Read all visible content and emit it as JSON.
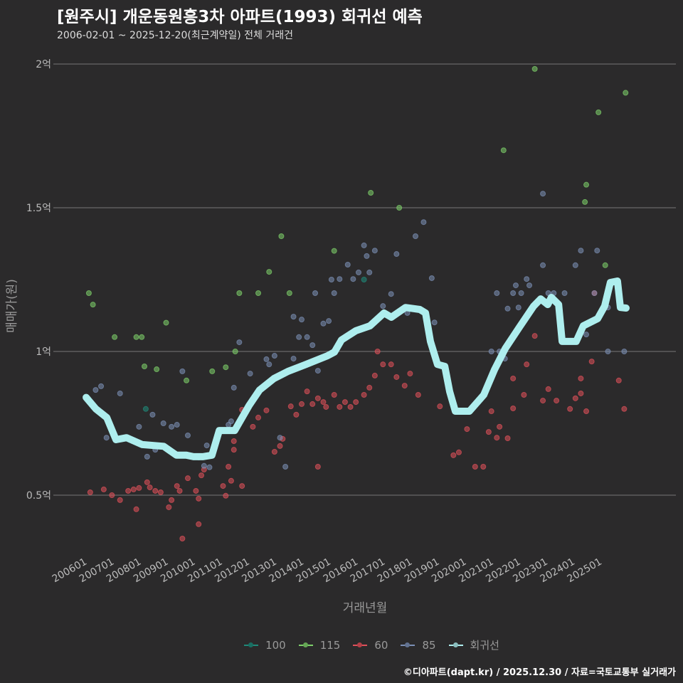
{
  "header": {
    "title": "[원주시] 개운동원흥3차 아파트(1993) 회귀선 예측",
    "subtitle": "2006-02-01 ~ 2025-12-20(최근계약일) 전체 거래건"
  },
  "footer": "©디아파트(dapt.kr) / 2025.12.30 / 자료=국토교통부 실거래가",
  "chart_data": {
    "type": "scatter",
    "title": "[원주시] 개운동원흥3차 아파트(1993) 회귀선 예측",
    "xlabel": "거래년월",
    "ylabel": "매매가(원)",
    "ylim": [
      2500,
      21000
    ],
    "xlim": [
      2005.1,
      2026.3
    ],
    "yticks": [
      {
        "v": 5000,
        "label": "0.5억"
      },
      {
        "v": 10000,
        "label": "1억"
      },
      {
        "v": 15000,
        "label": "1.5억"
      },
      {
        "v": 20000,
        "label": "2억"
      }
    ],
    "xticks": [
      "200601",
      "200701",
      "200801",
      "200901",
      "201001",
      "201101",
      "201201",
      "201301",
      "201401",
      "201501",
      "201601",
      "201701",
      "201801",
      "201901",
      "202001",
      "202101",
      "202201",
      "202301",
      "202401",
      "202501"
    ],
    "legend": [
      {
        "name": "100",
        "color": "#1f8a7a"
      },
      {
        "name": "115",
        "color": "#7ed06a"
      },
      {
        "name": "60",
        "color": "#e0505a"
      },
      {
        "name": "85",
        "color": "#7b8fb5"
      },
      {
        "name": "회귀선",
        "color": "#aeeeee"
      }
    ],
    "series": [
      {
        "name": "100",
        "points": [
          [
            2008.15,
            8000
          ],
          [
            2016.2,
            12500
          ]
        ]
      },
      {
        "name": "115",
        "points": [
          [
            2006.05,
            12030
          ],
          [
            2006.2,
            11630
          ],
          [
            2007.0,
            10500
          ],
          [
            2007.8,
            10500
          ],
          [
            2008.0,
            10500
          ],
          [
            2008.1,
            9480
          ],
          [
            2008.55,
            9380
          ],
          [
            2008.9,
            11000
          ],
          [
            2009.65,
            8990
          ],
          [
            2010.6,
            9310
          ],
          [
            2011.1,
            9450
          ],
          [
            2011.45,
            10000
          ],
          [
            2011.6,
            12030
          ],
          [
            2012.3,
            12030
          ],
          [
            2012.7,
            12770
          ],
          [
            2013.15,
            14010
          ],
          [
            2013.45,
            12030
          ],
          [
            2015.1,
            13500
          ],
          [
            2016.45,
            15520
          ],
          [
            2017.5,
            15000
          ],
          [
            2021.35,
            17000
          ],
          [
            2022.5,
            19830
          ],
          [
            2024.35,
            15200
          ],
          [
            2024.4,
            15800
          ],
          [
            2024.85,
            18320
          ],
          [
            2025.1,
            13000
          ],
          [
            2025.85,
            19000
          ]
        ]
      },
      {
        "name": "60",
        "points": [
          [
            2006.1,
            5100
          ],
          [
            2006.6,
            5200
          ],
          [
            2006.9,
            5000
          ],
          [
            2007.2,
            4830
          ],
          [
            2007.5,
            5150
          ],
          [
            2007.7,
            5200
          ],
          [
            2007.8,
            4510
          ],
          [
            2007.9,
            5250
          ],
          [
            2008.2,
            5450
          ],
          [
            2008.3,
            5270
          ],
          [
            2008.5,
            5150
          ],
          [
            2008.7,
            5100
          ],
          [
            2009.0,
            4580
          ],
          [
            2009.1,
            4830
          ],
          [
            2009.3,
            5320
          ],
          [
            2009.4,
            5150
          ],
          [
            2009.5,
            3490
          ],
          [
            2009.7,
            5590
          ],
          [
            2010.0,
            5150
          ],
          [
            2010.1,
            4880
          ],
          [
            2010.1,
            3990
          ],
          [
            2010.2,
            5690
          ],
          [
            2010.3,
            5890
          ],
          [
            2011.0,
            5320
          ],
          [
            2011.1,
            4980
          ],
          [
            2011.2,
            5990
          ],
          [
            2011.3,
            5500
          ],
          [
            2011.4,
            6580
          ],
          [
            2011.4,
            6880
          ],
          [
            2011.7,
            7970
          ],
          [
            2011.7,
            5320
          ],
          [
            2012.1,
            7380
          ],
          [
            2012.3,
            7700
          ],
          [
            2012.6,
            7950
          ],
          [
            2012.9,
            6510
          ],
          [
            2013.1,
            6710
          ],
          [
            2013.2,
            6960
          ],
          [
            2013.5,
            8090
          ],
          [
            2013.7,
            7800
          ],
          [
            2013.9,
            8170
          ],
          [
            2014.1,
            8610
          ],
          [
            2014.3,
            8170
          ],
          [
            2014.5,
            8370
          ],
          [
            2014.5,
            5990
          ],
          [
            2014.7,
            8240
          ],
          [
            2014.8,
            8070
          ],
          [
            2015.1,
            8490
          ],
          [
            2015.3,
            8070
          ],
          [
            2015.5,
            8240
          ],
          [
            2015.7,
            8070
          ],
          [
            2015.9,
            8240
          ],
          [
            2016.2,
            8490
          ],
          [
            2016.4,
            8740
          ],
          [
            2016.6,
            9160
          ],
          [
            2016.7,
            10000
          ],
          [
            2016.9,
            9550
          ],
          [
            2017.2,
            9550
          ],
          [
            2017.4,
            9110
          ],
          [
            2017.7,
            8810
          ],
          [
            2017.9,
            9230
          ],
          [
            2018.2,
            8490
          ],
          [
            2019.0,
            8090
          ],
          [
            2019.5,
            6390
          ],
          [
            2019.7,
            6490
          ],
          [
            2020.0,
            7300
          ],
          [
            2020.3,
            5990
          ],
          [
            2020.6,
            5990
          ],
          [
            2020.8,
            7200
          ],
          [
            2020.9,
            7920
          ],
          [
            2021.1,
            7000
          ],
          [
            2021.2,
            7380
          ],
          [
            2021.5,
            6980
          ],
          [
            2021.7,
            9060
          ],
          [
            2021.7,
            8020
          ],
          [
            2022.1,
            8490
          ],
          [
            2022.2,
            9550
          ],
          [
            2022.5,
            10540
          ],
          [
            2022.8,
            8290
          ],
          [
            2023.0,
            8690
          ],
          [
            2023.3,
            8290
          ],
          [
            2023.8,
            8000
          ],
          [
            2024.0,
            8370
          ],
          [
            2024.2,
            9060
          ],
          [
            2024.2,
            8540
          ],
          [
            2024.4,
            7920
          ],
          [
            2024.6,
            9650
          ],
          [
            2024.7,
            12030
          ],
          [
            2025.6,
            8990
          ],
          [
            2025.8,
            8000
          ]
        ]
      },
      {
        "name": "85",
        "points": [
          [
            2006.3,
            8660
          ],
          [
            2006.5,
            8790
          ],
          [
            2006.7,
            7000
          ],
          [
            2007.2,
            8540
          ],
          [
            2007.9,
            7380
          ],
          [
            2008.2,
            6340
          ],
          [
            2008.4,
            7800
          ],
          [
            2008.5,
            6580
          ],
          [
            2008.8,
            7500
          ],
          [
            2009.1,
            7380
          ],
          [
            2009.3,
            7450
          ],
          [
            2009.5,
            9310
          ],
          [
            2009.7,
            7080
          ],
          [
            2010.1,
            6310
          ],
          [
            2010.3,
            6020
          ],
          [
            2010.4,
            6730
          ],
          [
            2010.5,
            5970
          ],
          [
            2011.2,
            7450
          ],
          [
            2011.3,
            7570
          ],
          [
            2011.4,
            8740
          ],
          [
            2011.6,
            10320
          ],
          [
            2012.0,
            9230
          ],
          [
            2012.6,
            9730
          ],
          [
            2012.7,
            9550
          ],
          [
            2012.9,
            9850
          ],
          [
            2013.1,
            7000
          ],
          [
            2013.3,
            5990
          ],
          [
            2013.6,
            9750
          ],
          [
            2013.6,
            11210
          ],
          [
            2013.8,
            10500
          ],
          [
            2013.9,
            11110
          ],
          [
            2014.1,
            10500
          ],
          [
            2014.3,
            10220
          ],
          [
            2014.4,
            12030
          ],
          [
            2014.5,
            9330
          ],
          [
            2014.7,
            10970
          ],
          [
            2014.9,
            11060
          ],
          [
            2015.0,
            12500
          ],
          [
            2015.1,
            12030
          ],
          [
            2015.3,
            12520
          ],
          [
            2015.6,
            13020
          ],
          [
            2015.8,
            12520
          ],
          [
            2016.0,
            12750
          ],
          [
            2016.2,
            13690
          ],
          [
            2016.3,
            13320
          ],
          [
            2016.4,
            12750
          ],
          [
            2016.6,
            13510
          ],
          [
            2016.9,
            11580
          ],
          [
            2017.2,
            12000
          ],
          [
            2017.4,
            13390
          ],
          [
            2017.8,
            11340
          ],
          [
            2018.1,
            14010
          ],
          [
            2018.4,
            14500
          ],
          [
            2018.7,
            12550
          ],
          [
            2018.8,
            11010
          ],
          [
            2020.9,
            10000
          ],
          [
            2021.1,
            12030
          ],
          [
            2021.2,
            10000
          ],
          [
            2021.4,
            9750
          ],
          [
            2021.5,
            11490
          ],
          [
            2021.7,
            12030
          ],
          [
            2021.8,
            12300
          ],
          [
            2021.9,
            11530
          ],
          [
            2022.0,
            12030
          ],
          [
            2022.2,
            12520
          ],
          [
            2022.3,
            12300
          ],
          [
            2022.8,
            15490
          ],
          [
            2022.8,
            13000
          ],
          [
            2023.0,
            12030
          ],
          [
            2023.2,
            12030
          ],
          [
            2023.6,
            12030
          ],
          [
            2024.0,
            13000
          ],
          [
            2024.2,
            13510
          ],
          [
            2024.4,
            10590
          ],
          [
            2024.7,
            12030
          ],
          [
            2024.8,
            13510
          ],
          [
            2025.2,
            11530
          ],
          [
            2025.2,
            10000
          ],
          [
            2025.8,
            10000
          ]
        ]
      }
    ],
    "regression": {
      "name": "회귀선",
      "points": [
        [
          2005.95,
          8400
        ],
        [
          2006.31,
          8000
        ],
        [
          2006.71,
          7700
        ],
        [
          2007.05,
          6930
        ],
        [
          2007.44,
          7000
        ],
        [
          2008.02,
          6760
        ],
        [
          2008.81,
          6700
        ],
        [
          2009.28,
          6390
        ],
        [
          2009.65,
          6390
        ],
        [
          2009.91,
          6340
        ],
        [
          2010.25,
          6340
        ],
        [
          2010.59,
          6390
        ],
        [
          2010.86,
          7250
        ],
        [
          2011.43,
          7250
        ],
        [
          2011.96,
          8120
        ],
        [
          2012.35,
          8660
        ],
        [
          2012.88,
          9060
        ],
        [
          2013.4,
          9310
        ],
        [
          2014.06,
          9550
        ],
        [
          2014.85,
          9850
        ],
        [
          2015.11,
          9980
        ],
        [
          2015.37,
          10400
        ],
        [
          2015.9,
          10720
        ],
        [
          2016.42,
          10890
        ],
        [
          2016.94,
          11340
        ],
        [
          2017.21,
          11190
        ],
        [
          2017.73,
          11530
        ],
        [
          2018.26,
          11460
        ],
        [
          2018.47,
          11340
        ],
        [
          2018.65,
          10350
        ],
        [
          2018.91,
          9550
        ],
        [
          2019.18,
          9480
        ],
        [
          2019.36,
          8610
        ],
        [
          2019.57,
          7920
        ],
        [
          2020.09,
          7920
        ],
        [
          2020.62,
          8490
        ],
        [
          2021.01,
          9360
        ],
        [
          2021.41,
          10100
        ],
        [
          2021.93,
          10840
        ],
        [
          2022.46,
          11580
        ],
        [
          2022.72,
          11830
        ],
        [
          2022.98,
          11630
        ],
        [
          2023.11,
          11880
        ],
        [
          2023.38,
          11630
        ],
        [
          2023.51,
          10350
        ],
        [
          2024.03,
          10350
        ],
        [
          2024.29,
          10890
        ],
        [
          2024.82,
          11140
        ],
        [
          2025.08,
          11580
        ],
        [
          2025.29,
          12400
        ],
        [
          2025.55,
          12450
        ],
        [
          2025.66,
          11530
        ],
        [
          2025.87,
          11510
        ]
      ]
    }
  }
}
